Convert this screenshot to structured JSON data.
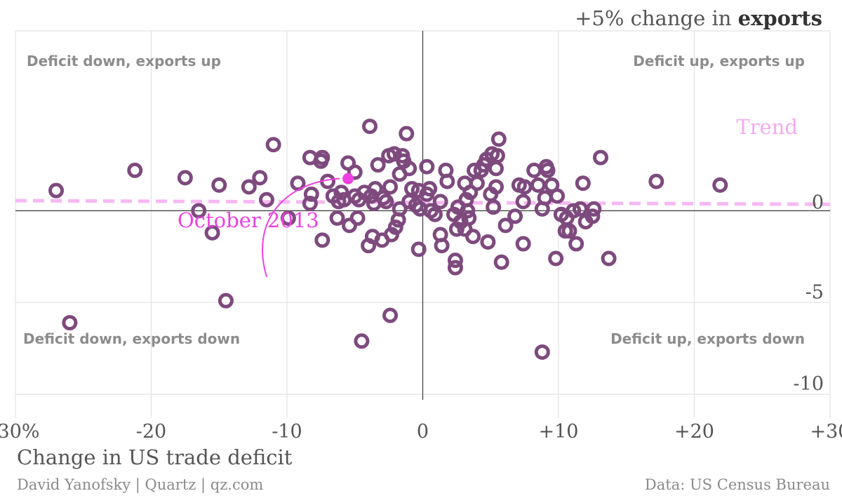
{
  "chart_data": {
    "type": "scatter",
    "ylabel_prefix": "+5% change in ",
    "ylabel_bold": "exports",
    "xlabel": "Change in US trade deficit",
    "xlim": [
      -30,
      30
    ],
    "ylim": [
      -10.3,
      9.8
    ],
    "x_ticks": [
      {
        "value": -30,
        "label": "-30%"
      },
      {
        "value": -20,
        "label": "-20"
      },
      {
        "value": -10,
        "label": "-10"
      },
      {
        "value": 0,
        "label": "0"
      },
      {
        "value": 10,
        "label": "+10"
      },
      {
        "value": 20,
        "label": "+20"
      },
      {
        "value": 30,
        "label": "+30"
      }
    ],
    "y_ticks": [
      {
        "value": 0,
        "label": "0"
      },
      {
        "value": -5,
        "label": "-5"
      },
      {
        "value": -10,
        "label": "-10"
      }
    ],
    "grid": true,
    "quadrant_labels": {
      "top_left": "Deficit down, exports up",
      "top_right": "Deficit up, exports up",
      "bottom_left": "Deficit down, exports down",
      "bottom_right": "Deficit up, exports down"
    },
    "trend": {
      "label": "Trend",
      "x": [
        -30,
        30
      ],
      "y": [
        0.55,
        0.35
      ],
      "color": "#f6b8f2"
    },
    "highlight": {
      "label": "October 2013",
      "x": -5.5,
      "y": 1.75,
      "color": "#ee40e2"
    },
    "colors": {
      "point": "#7e4a7e",
      "trend": "#f6b8f2",
      "highlight": "#ee40e2"
    },
    "points": [
      [
        -27.0,
        1.1
      ],
      [
        -21.2,
        2.2
      ],
      [
        -17.5,
        1.8
      ],
      [
        -16.5,
        0.0
      ],
      [
        -15.5,
        -1.2
      ],
      [
        -15.0,
        1.4
      ],
      [
        -14.5,
        -4.9
      ],
      [
        -26.0,
        -6.1
      ],
      [
        -12.8,
        1.3
      ],
      [
        -12.0,
        1.8
      ],
      [
        -11.5,
        0.6
      ],
      [
        -11.0,
        3.6
      ],
      [
        -9.9,
        -0.4
      ],
      [
        -9.2,
        1.5
      ],
      [
        -8.3,
        2.9
      ],
      [
        -8.2,
        0.9
      ],
      [
        -8.3,
        0.4
      ],
      [
        -7.5,
        2.7
      ],
      [
        -7.4,
        2.9
      ],
      [
        -7.4,
        -1.6
      ],
      [
        -7.0,
        1.6
      ],
      [
        -6.6,
        0.8
      ],
      [
        -6.3,
        -0.4
      ],
      [
        -6.2,
        0.5
      ],
      [
        -6.0,
        1.0
      ],
      [
        -5.8,
        0.6
      ],
      [
        -5.5,
        2.6
      ],
      [
        -5.4,
        -0.8
      ],
      [
        -5.0,
        2.1
      ],
      [
        -5.0,
        0.8
      ],
      [
        -4.8,
        -0.4
      ],
      [
        -4.7,
        0.6
      ],
      [
        -4.5,
        -7.1
      ],
      [
        -4.3,
        1.0
      ],
      [
        -4.0,
        -1.9
      ],
      [
        -3.9,
        4.6
      ],
      [
        -3.8,
        0.8
      ],
      [
        -3.7,
        -1.4
      ],
      [
        -3.6,
        0.4
      ],
      [
        -3.5,
        1.2
      ],
      [
        -3.3,
        2.5
      ],
      [
        -3.0,
        -1.6
      ],
      [
        -2.9,
        0.7
      ],
      [
        -2.7,
        0.5
      ],
      [
        -2.5,
        3.0
      ],
      [
        -2.4,
        -5.7
      ],
      [
        -2.4,
        1.3
      ],
      [
        -2.3,
        -1.3
      ],
      [
        -2.1,
        3.1
      ],
      [
        -2.0,
        -0.9
      ],
      [
        -1.8,
        -0.5
      ],
      [
        -1.7,
        2.0
      ],
      [
        -1.7,
        0.1
      ],
      [
        -1.5,
        3.0
      ],
      [
        -1.4,
        2.7
      ],
      [
        -1.2,
        4.2
      ],
      [
        -1.0,
        2.3
      ],
      [
        -1.0,
        0.5
      ],
      [
        -0.8,
        1.2
      ],
      [
        -0.5,
        0.3
      ],
      [
        -0.3,
        -2.1
      ],
      [
        -0.3,
        1.1
      ],
      [
        -0.2,
        0.1
      ],
      [
        0.3,
        2.4
      ],
      [
        0.3,
        0.9
      ],
      [
        0.5,
        1.2
      ],
      [
        0.6,
        0.0
      ],
      [
        0.9,
        -0.2
      ],
      [
        1.3,
        0.5
      ],
      [
        1.3,
        -1.3
      ],
      [
        1.4,
        -1.9
      ],
      [
        1.7,
        2.2
      ],
      [
        1.8,
        1.6
      ],
      [
        2.3,
        -0.2
      ],
      [
        2.4,
        -2.7
      ],
      [
        2.4,
        -3.1
      ],
      [
        2.5,
        -1.0
      ],
      [
        2.6,
        0.2
      ],
      [
        2.8,
        -0.6
      ],
      [
        3.1,
        1.5
      ],
      [
        3.1,
        -1.0
      ],
      [
        3.2,
        0.6
      ],
      [
        3.3,
        0.0
      ],
      [
        3.4,
        -0.4
      ],
      [
        3.5,
        1.0
      ],
      [
        3.7,
        -1.4
      ],
      [
        3.8,
        2.2
      ],
      [
        4.0,
        1.5
      ],
      [
        4.3,
        2.2
      ],
      [
        4.5,
        2.5
      ],
      [
        4.7,
        2.8
      ],
      [
        4.8,
        -1.7
      ],
      [
        5.0,
        0.9
      ],
      [
        5.1,
        3.1
      ],
      [
        5.2,
        0.2
      ],
      [
        5.4,
        1.3
      ],
      [
        5.4,
        2.3
      ],
      [
        5.5,
        3.0
      ],
      [
        5.6,
        3.9
      ],
      [
        5.8,
        -2.8
      ],
      [
        6.1,
        -0.8
      ],
      [
        6.8,
        -0.3
      ],
      [
        7.1,
        1.4
      ],
      [
        7.4,
        -1.8
      ],
      [
        7.4,
        0.5
      ],
      [
        7.5,
        1.3
      ],
      [
        8.2,
        2.2
      ],
      [
        8.5,
        1.4
      ],
      [
        8.8,
        -7.7
      ],
      [
        8.8,
        0.1
      ],
      [
        9.0,
        0.7
      ],
      [
        9.1,
        2.4
      ],
      [
        9.2,
        2.2
      ],
      [
        9.5,
        1.4
      ],
      [
        9.8,
        -2.6
      ],
      [
        9.9,
        0.8
      ],
      [
        10.2,
        -0.2
      ],
      [
        10.5,
        -1.1
      ],
      [
        10.6,
        -0.4
      ],
      [
        10.8,
        -1.1
      ],
      [
        11.1,
        0.0
      ],
      [
        11.3,
        -1.8
      ],
      [
        11.6,
        0.1
      ],
      [
        11.8,
        1.5
      ],
      [
        12.0,
        -0.6
      ],
      [
        12.5,
        -0.3
      ],
      [
        12.6,
        0.1
      ],
      [
        13.1,
        2.9
      ],
      [
        13.7,
        -2.6
      ],
      [
        17.2,
        1.6
      ],
      [
        21.9,
        1.4
      ]
    ]
  },
  "footer": {
    "credit": "David Yanofsky | Quartz | qz.com",
    "source": "Data: US Census Bureau"
  }
}
